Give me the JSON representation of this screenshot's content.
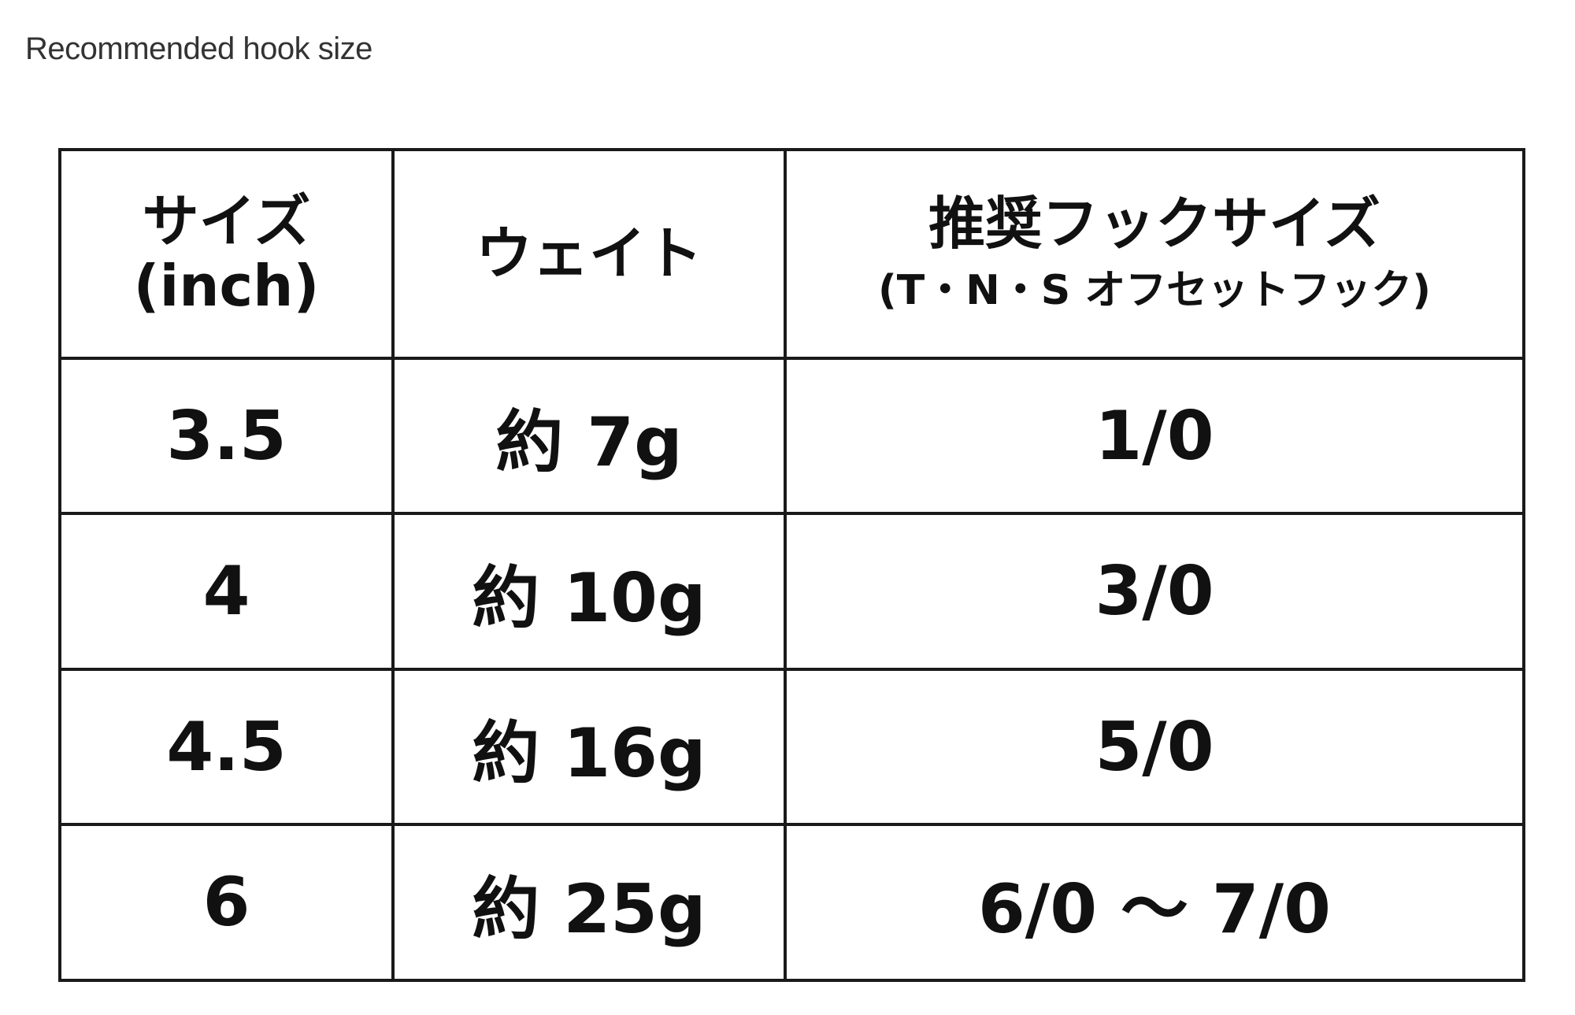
{
  "title": "Recommended hook size",
  "table": {
    "headers": [
      {
        "line1": "サイズ",
        "line2": "(inch)"
      },
      {
        "line1": "ウェイト",
        "line2": ""
      },
      {
        "line1": "推奨フックサイズ",
        "line2": "(T・N・S オフセットフック)"
      }
    ],
    "rows": [
      [
        "3.5",
        "約 7g",
        "1/0"
      ],
      [
        "4",
        "約 10g",
        "3/0"
      ],
      [
        "4.5",
        "約 16g",
        "5/0"
      ],
      [
        "6",
        "約 25g",
        "6/0 ～ 7/0"
      ]
    ]
  }
}
